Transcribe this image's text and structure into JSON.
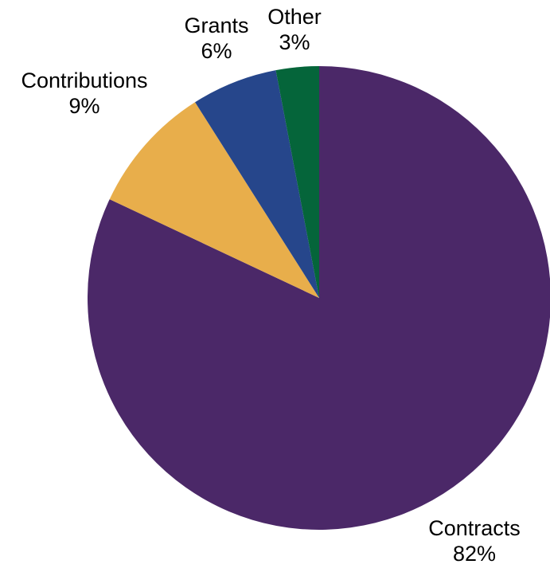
{
  "chart_data": {
    "type": "pie",
    "title": "",
    "slices": [
      {
        "label": "Contracts",
        "value": 82,
        "value_label": "82%",
        "color": "#4b2868"
      },
      {
        "label": "Contributions",
        "value": 9,
        "value_label": "9%",
        "color": "#e8ae4b"
      },
      {
        "label": "Grants",
        "value": 6,
        "value_label": "6%",
        "color": "#26468b"
      },
      {
        "label": "Other",
        "value": 3,
        "value_label": "3%",
        "color": "#05653a"
      }
    ],
    "start_angle": "12 o'clock",
    "direction": "clockwise",
    "legend": "none"
  }
}
